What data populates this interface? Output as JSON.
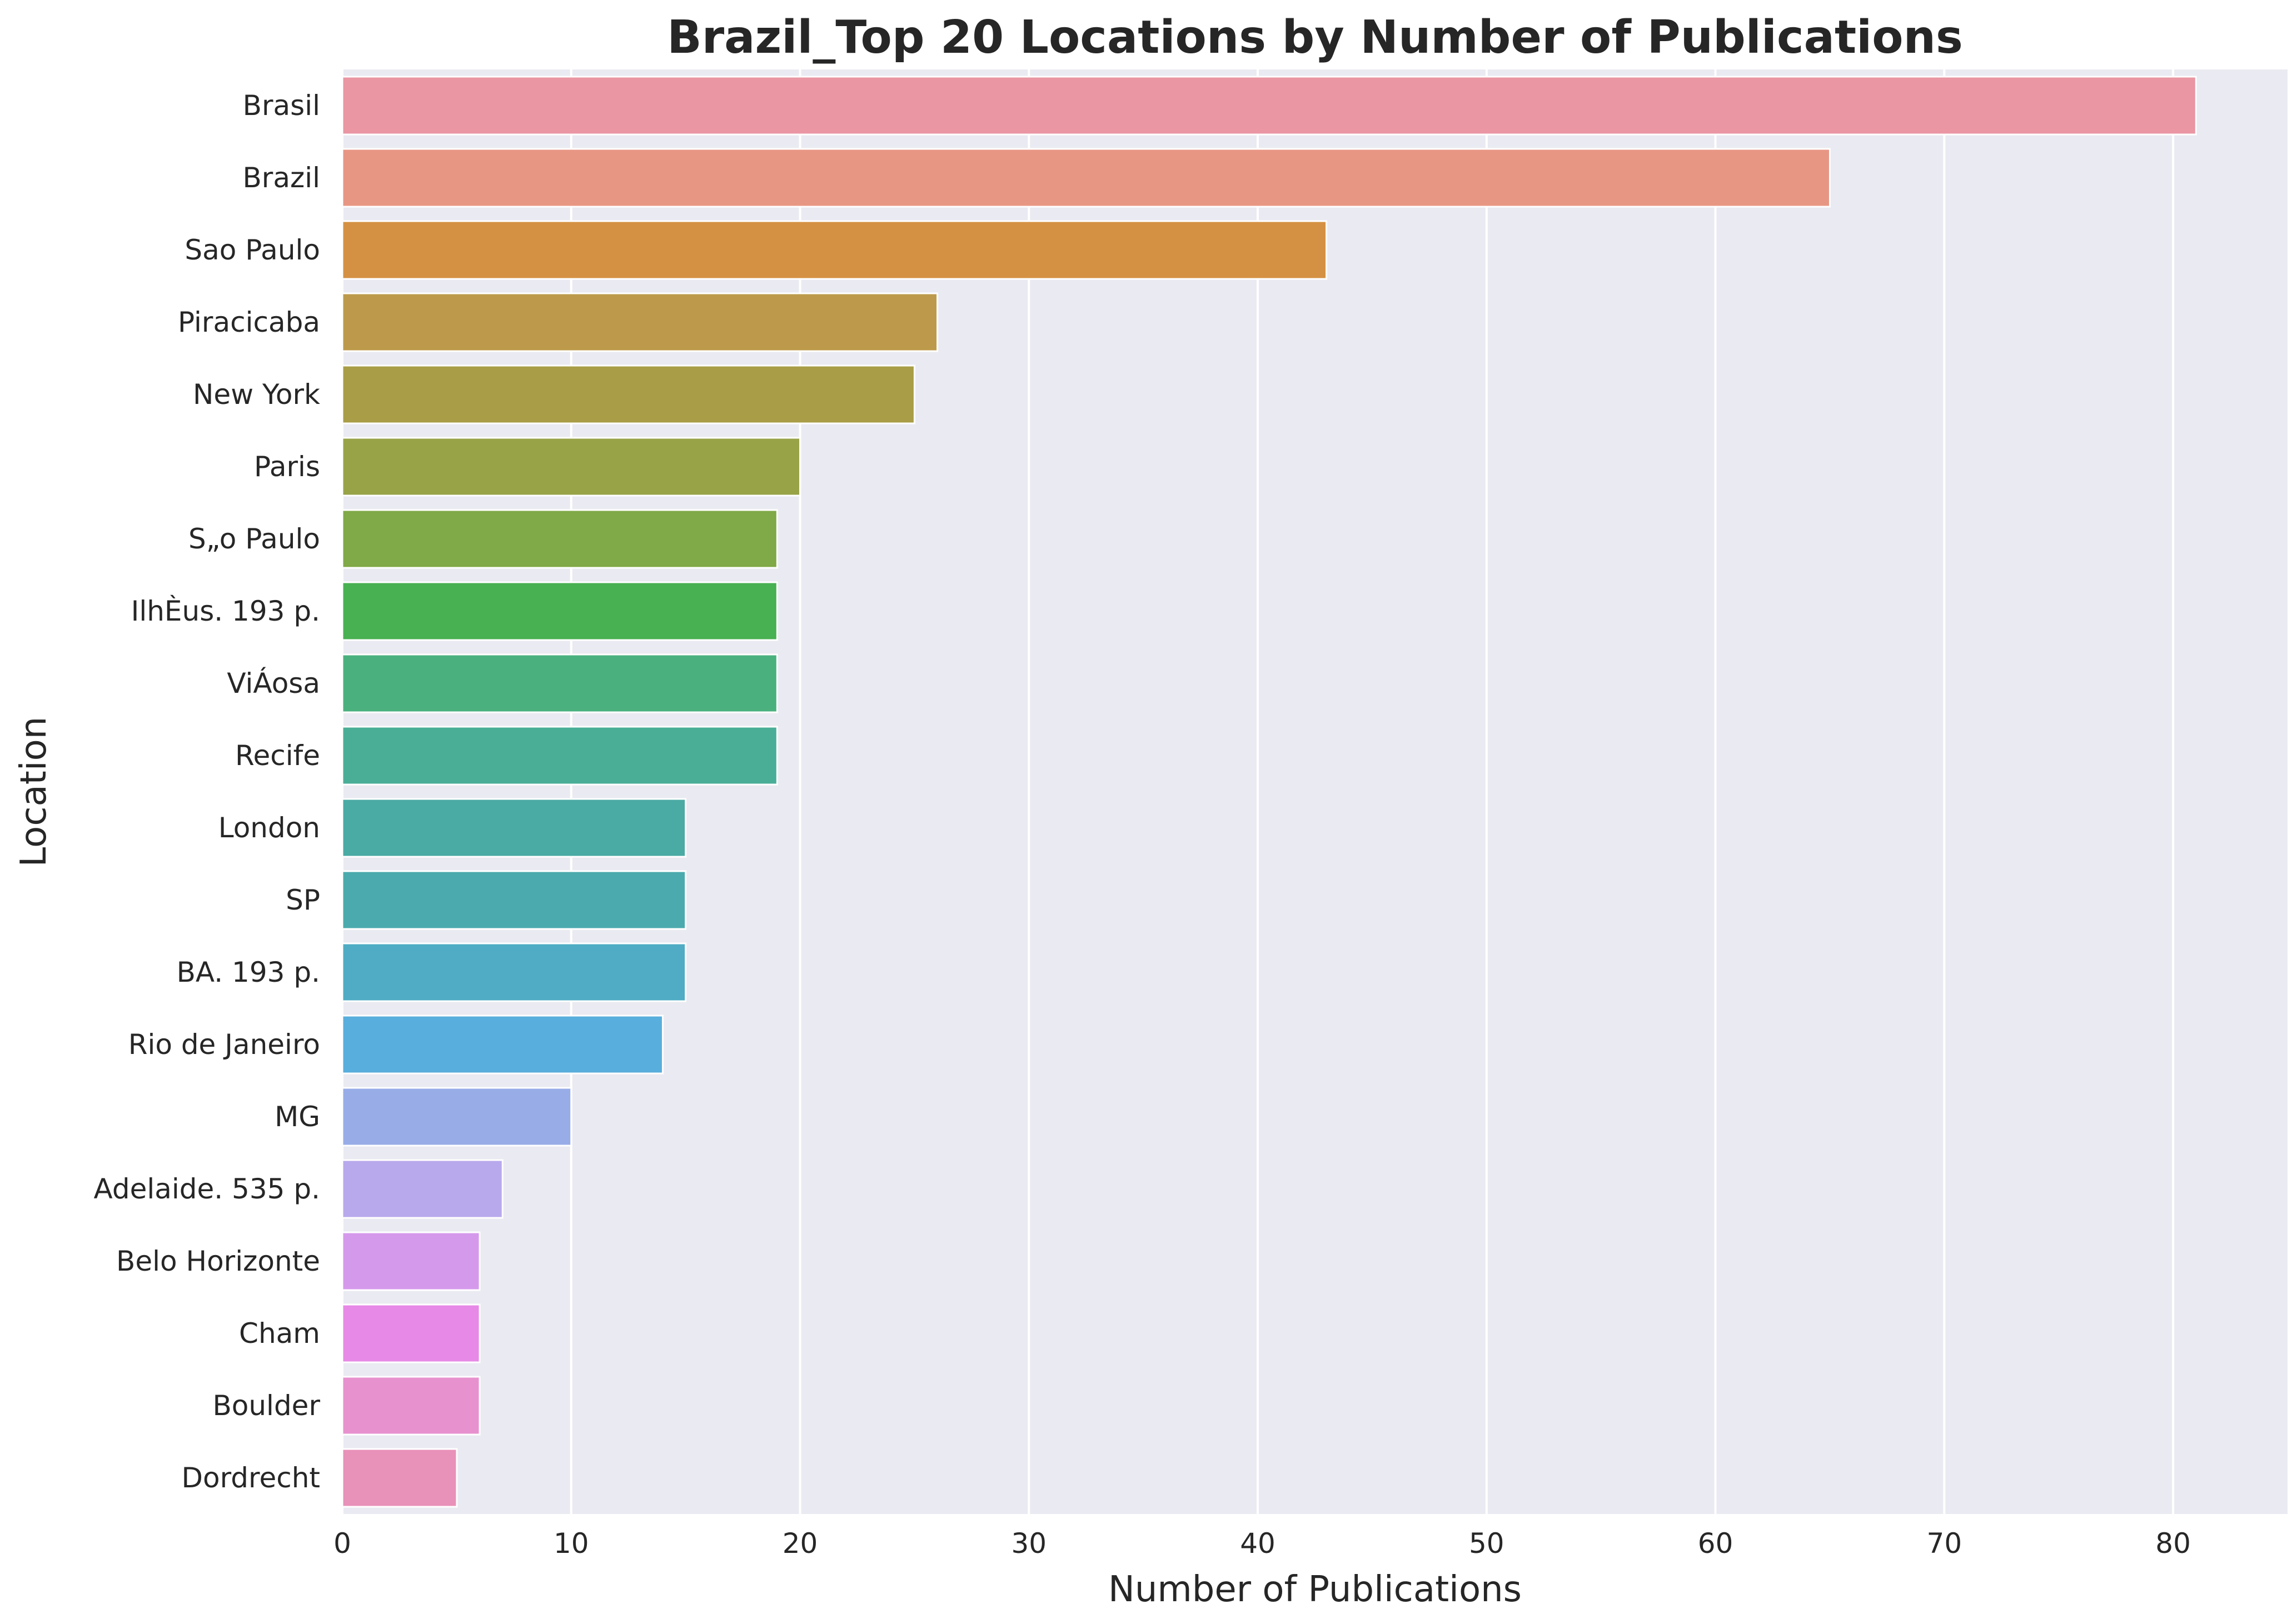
{
  "chart_data": {
    "type": "bar",
    "orientation": "horizontal",
    "title": "Brazil_Top 20 Locations by Number of Publications",
    "xlabel": "Number of Publications",
    "ylabel": "Location",
    "xlim": [
      0,
      85
    ],
    "xticks": [
      0,
      10,
      20,
      30,
      40,
      50,
      60,
      70,
      80
    ],
    "grid": true,
    "background_color": "#eaeaf2",
    "grid_color": "#ffffff",
    "categories": [
      "Brasil",
      "Brazil",
      "Sao Paulo",
      "Piracicaba",
      "New York",
      "Paris",
      "S„o Paulo",
      "IlhÈus. 193 p.",
      "ViÁosa",
      "Recife",
      "London",
      "SP",
      "BA. 193 p.",
      "Rio de Janeiro",
      "MG",
      "Adelaide.  535 p.",
      "Belo Horizonte",
      "Cham",
      "Boulder",
      "Dordrecht"
    ],
    "values": [
      81,
      65,
      43,
      26,
      25,
      20,
      19,
      19,
      19,
      19,
      15,
      15,
      15,
      14,
      10,
      7,
      6,
      6,
      6,
      5
    ],
    "colors": [
      "#ea96a3",
      "#e89684",
      "#d59143",
      "#bd9a4b",
      "#a99d47",
      "#98a348",
      "#80a947",
      "#48b152",
      "#4ab17e",
      "#4aae97",
      "#4aaaa4",
      "#4baaae",
      "#4facc4",
      "#58aedd",
      "#98ade8",
      "#b8a8ec",
      "#d599ec",
      "#e789e6",
      "#e891cf",
      "#e891b9"
    ]
  }
}
